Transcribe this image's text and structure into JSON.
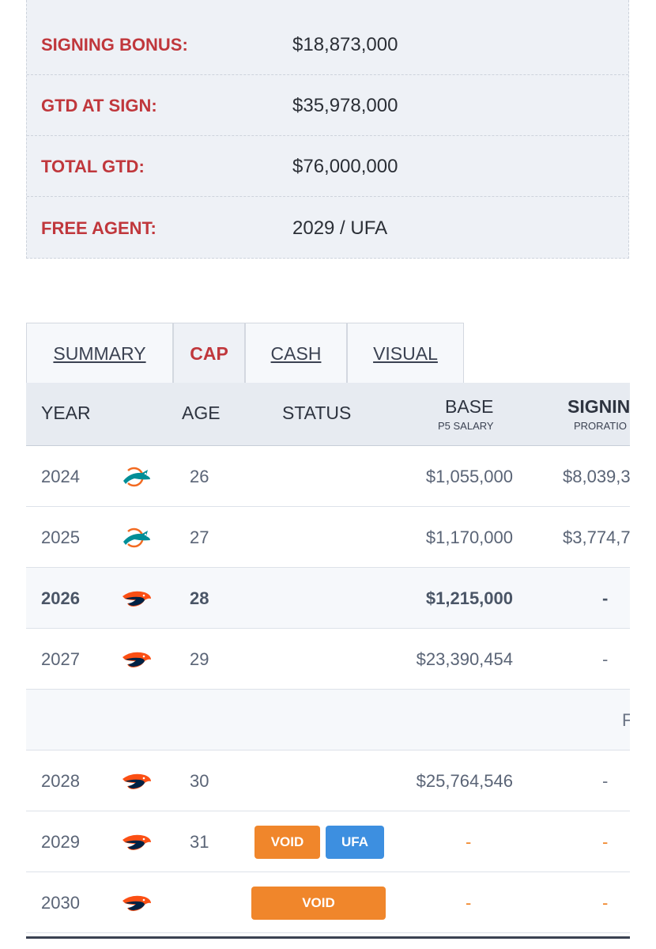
{
  "summary": [
    {
      "label": "SIGNING BONUS:",
      "value": "$18,873,000"
    },
    {
      "label": "GTD AT SIGN:",
      "value": "$35,978,000"
    },
    {
      "label": "TOTAL GTD:",
      "value": "$76,000,000"
    },
    {
      "label": "FREE AGENT:",
      "value": "2029 / UFA"
    }
  ],
  "tabs": [
    "SUMMARY",
    "CAP",
    "CASH",
    "VISUAL"
  ],
  "active_tab": "CAP",
  "table": {
    "headers": {
      "year": "YEAR",
      "age": "AGE",
      "status": "STATUS",
      "base": "BASE",
      "base_sub": "P5 SALARY",
      "signing": "SIGNIN",
      "signing_sub": "PRORATIO"
    },
    "rows": [
      {
        "year": "2024",
        "team_icon": "dolphins-logo",
        "age": "26",
        "base": "$1,055,000",
        "signing": "$8,039,3"
      },
      {
        "year": "2025",
        "team_icon": "dolphins-logo",
        "age": "27",
        "base": "$1,170,000",
        "signing": "$3,774,7"
      },
      {
        "year": "2026",
        "team_icon": "broncos-logo",
        "age": "28",
        "base": "$1,215,000",
        "signing": "-"
      },
      {
        "year": "2027",
        "team_icon": "broncos-logo",
        "age": "29",
        "base": "$23,390,454",
        "signing": "-"
      },
      {
        "separator_text": "F"
      },
      {
        "year": "2028",
        "team_icon": "broncos-logo",
        "age": "30",
        "base": "$25,764,546",
        "signing": "-"
      },
      {
        "year": "2029",
        "team_icon": "broncos-logo",
        "age": "31",
        "badges": [
          "VOID",
          "UFA"
        ],
        "base": "-",
        "signing": "-"
      },
      {
        "year": "2030",
        "team_icon": "broncos-logo",
        "age": "",
        "badges": [
          "VOID"
        ],
        "base": "-",
        "signing": "-"
      }
    ]
  },
  "colors": {
    "label_red": "#c0373c",
    "void_orange": "#f0862b",
    "ufa_blue": "#3d8fe0"
  }
}
